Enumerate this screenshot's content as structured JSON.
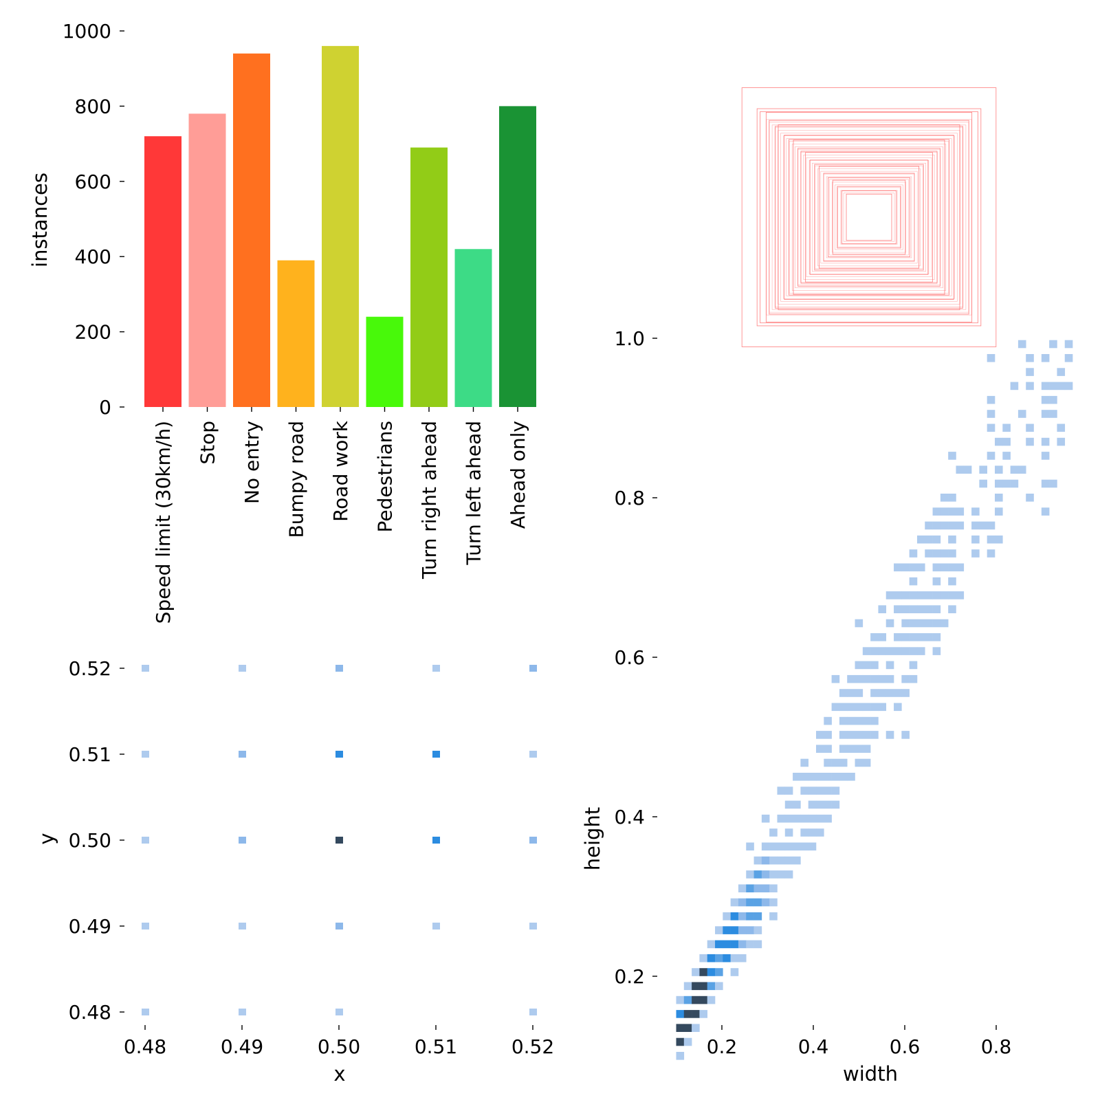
{
  "chart_data": [
    {
      "type": "bar",
      "xlabel": "",
      "ylabel": "instances",
      "ylim": [
        0,
        1000
      ],
      "yticks": [
        0,
        200,
        400,
        600,
        800,
        1000
      ],
      "categories": [
        "Speed limit (30km/h)",
        "Stop",
        "No entry",
        "Bumpy road",
        "Road work",
        "Pedestrians",
        "Turn right ahead",
        "Turn left ahead",
        "Ahead only"
      ],
      "values": [
        720,
        780,
        940,
        390,
        960,
        240,
        690,
        420,
        800
      ],
      "colors": [
        "#ff3838",
        "#ff9d97",
        "#ff701f",
        "#ffb21d",
        "#cfd231",
        "#48f90a",
        "#92cc17",
        "#3ddb86",
        "#1a9334"
      ],
      "grid": false
    },
    {
      "type": "box_overlay",
      "title": "",
      "description_color": "#ff7777",
      "box_sizes": [
        0.84,
        0.74,
        0.72,
        0.68,
        0.66,
        0.62,
        0.6,
        0.56,
        0.53,
        0.5,
        0.47,
        0.45,
        0.42,
        0.39,
        0.36,
        0.33,
        0.3,
        0.27,
        0.24,
        0.21,
        0.18,
        0.15
      ]
    },
    {
      "type": "heatmap",
      "xlabel": "x",
      "ylabel": "y",
      "xticks": [
        "0.48",
        "0.49",
        "0.50",
        "0.51",
        "0.52"
      ],
      "yticks": [
        "0.52",
        "0.51",
        "0.50",
        "0.49",
        "0.48"
      ],
      "cells": [
        {
          "x": 0.48,
          "y": 0.52,
          "level": 1
        },
        {
          "x": 0.49,
          "y": 0.52,
          "level": 1
        },
        {
          "x": 0.5,
          "y": 0.52,
          "level": 2
        },
        {
          "x": 0.51,
          "y": 0.52,
          "level": 1
        },
        {
          "x": 0.52,
          "y": 0.52,
          "level": 2
        },
        {
          "x": 0.48,
          "y": 0.51,
          "level": 1
        },
        {
          "x": 0.49,
          "y": 0.51,
          "level": 2
        },
        {
          "x": 0.5,
          "y": 0.51,
          "level": 4
        },
        {
          "x": 0.51,
          "y": 0.51,
          "level": 4
        },
        {
          "x": 0.52,
          "y": 0.51,
          "level": 1
        },
        {
          "x": 0.48,
          "y": 0.5,
          "level": 1
        },
        {
          "x": 0.49,
          "y": 0.5,
          "level": 2
        },
        {
          "x": 0.5,
          "y": 0.5,
          "level": 5
        },
        {
          "x": 0.51,
          "y": 0.5,
          "level": 4
        },
        {
          "x": 0.52,
          "y": 0.5,
          "level": 2
        },
        {
          "x": 0.48,
          "y": 0.49,
          "level": 1
        },
        {
          "x": 0.49,
          "y": 0.49,
          "level": 1
        },
        {
          "x": 0.5,
          "y": 0.49,
          "level": 2
        },
        {
          "x": 0.51,
          "y": 0.49,
          "level": 1
        },
        {
          "x": 0.52,
          "y": 0.49,
          "level": 1
        },
        {
          "x": 0.48,
          "y": 0.48,
          "level": 1
        },
        {
          "x": 0.49,
          "y": 0.48,
          "level": 1
        },
        {
          "x": 0.5,
          "y": 0.48,
          "level": 1
        },
        {
          "x": 0.52,
          "y": 0.48,
          "level": 1
        }
      ],
      "colors": [
        "#ffffff",
        "#aecbee",
        "#8db8ea",
        "#5aa2e4",
        "#2c8ce0",
        "#34495e"
      ]
    },
    {
      "type": "heatmap",
      "xlabel": "width",
      "ylabel": "height",
      "xticks": [
        "0.2",
        "0.4",
        "0.6",
        "0.8"
      ],
      "yticks": [
        "0.2",
        "0.4",
        "0.6",
        "0.8",
        "1.0"
      ],
      "trend": "dense diagonal band from (0.1, 0.12) to (0.95, 0.95)",
      "colors": [
        "#ffffff",
        "#aecbee",
        "#8db8ea",
        "#5aa2e4",
        "#2c8ce0",
        "#34495e"
      ]
    }
  ]
}
